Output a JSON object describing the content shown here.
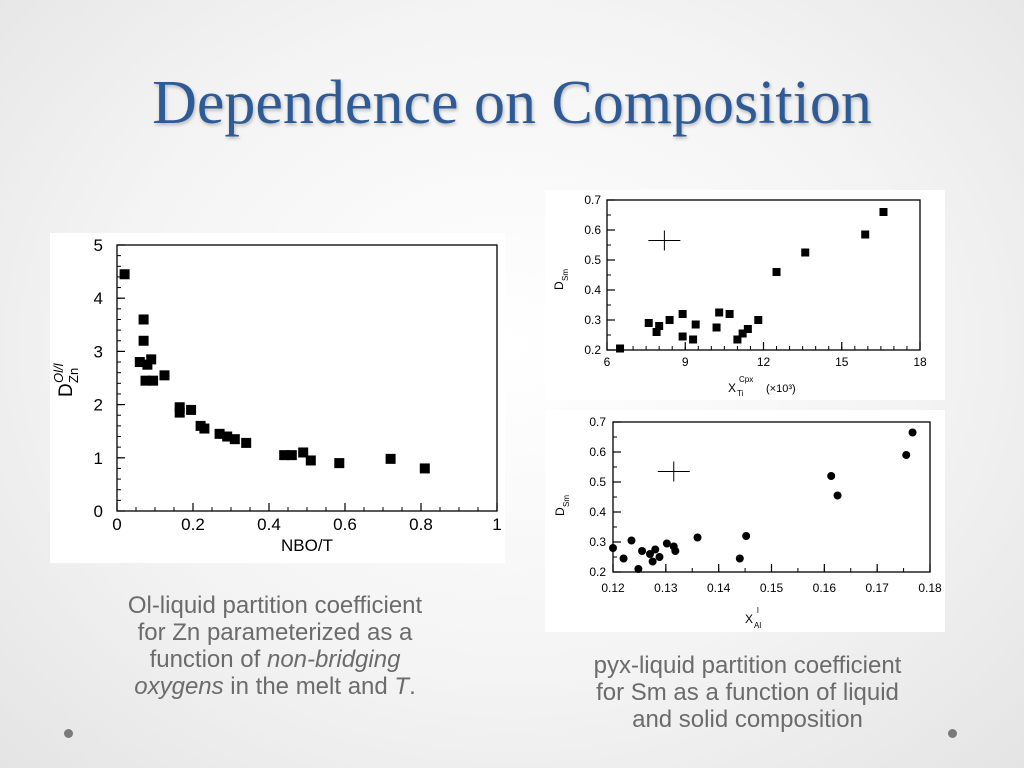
{
  "slide": {
    "title": "Dependence on Composition",
    "caption_left": {
      "line1": "Ol-liquid partition coefficient",
      "line2": "for Zn parameterized as a",
      "line3_a": "function of ",
      "line3_b": "non-bridging",
      "line4_a": "oxygens",
      "line4_b": " in the melt and ",
      "line4_c": "T",
      "line4_d": "."
    },
    "caption_right": {
      "line1": "pyx-liquid partition coefficient",
      "line2": "for Sm as a function of liquid",
      "line3": "and solid composition"
    }
  },
  "chart_data": [
    {
      "id": "zn",
      "type": "scatter",
      "marker": "square",
      "xlabel": "NBO/T",
      "ylabel": "D",
      "ylabel_sup": "Ol/l",
      "ylabel_sub": "Zn",
      "xlim": [
        0,
        1
      ],
      "ylim": [
        0,
        5
      ],
      "xticks": [
        "0",
        "0.2",
        "0.4",
        "0.6",
        "0.8",
        "1"
      ],
      "xtick_values": [
        0,
        0.2,
        0.4,
        0.6,
        0.8,
        1
      ],
      "yticks": [
        "0",
        "1",
        "2",
        "3",
        "4",
        "5"
      ],
      "ytick_values": [
        0,
        1,
        2,
        3,
        4,
        5
      ],
      "points": [
        [
          0.02,
          4.45
        ],
        [
          0.07,
          3.6
        ],
        [
          0.07,
          3.2
        ],
        [
          0.06,
          2.8
        ],
        [
          0.08,
          2.75
        ],
        [
          0.09,
          2.85
        ],
        [
          0.075,
          2.45
        ],
        [
          0.095,
          2.45
        ],
        [
          0.125,
          2.55
        ],
        [
          0.165,
          1.95
        ],
        [
          0.165,
          1.85
        ],
        [
          0.195,
          1.9
        ],
        [
          0.22,
          1.6
        ],
        [
          0.23,
          1.55
        ],
        [
          0.27,
          1.45
        ],
        [
          0.29,
          1.4
        ],
        [
          0.31,
          1.35
        ],
        [
          0.34,
          1.28
        ],
        [
          0.44,
          1.05
        ],
        [
          0.46,
          1.05
        ],
        [
          0.49,
          1.1
        ],
        [
          0.51,
          0.95
        ],
        [
          0.585,
          0.9
        ],
        [
          0.72,
          0.98
        ],
        [
          0.81,
          0.8
        ]
      ]
    },
    {
      "id": "smA",
      "type": "scatter",
      "marker": "square",
      "xlabel": "X",
      "xlabel_sup": "Cpx",
      "xlabel_sub": "Ti",
      "xlabel_suffix": "(×10³)",
      "ylabel": "D",
      "ylabel_sub": "Sm",
      "xlim": [
        6,
        18
      ],
      "ylim": [
        0.2,
        0.7
      ],
      "xticks": [
        "6",
        "9",
        "12",
        "15",
        "18"
      ],
      "xtick_values": [
        6,
        9,
        12,
        15,
        18
      ],
      "yticks": [
        "0.2",
        "0.3",
        "0.4",
        "0.5",
        "0.6",
        "0.7"
      ],
      "ytick_values": [
        0.2,
        0.3,
        0.4,
        0.5,
        0.6,
        0.7
      ],
      "error_cross": [
        8.2,
        0.565
      ],
      "points": [
        [
          6.5,
          0.205
        ],
        [
          7.6,
          0.29
        ],
        [
          7.9,
          0.26
        ],
        [
          8.0,
          0.28
        ],
        [
          8.4,
          0.3
        ],
        [
          8.9,
          0.32
        ],
        [
          8.9,
          0.245
        ],
        [
          9.3,
          0.235
        ],
        [
          9.4,
          0.285
        ],
        [
          10.2,
          0.275
        ],
        [
          10.3,
          0.325
        ],
        [
          10.7,
          0.32
        ],
        [
          11.0,
          0.235
        ],
        [
          11.2,
          0.255
        ],
        [
          11.4,
          0.27
        ],
        [
          11.8,
          0.3
        ],
        [
          12.5,
          0.46
        ],
        [
          13.6,
          0.525
        ],
        [
          15.9,
          0.585
        ],
        [
          16.6,
          0.66
        ]
      ]
    },
    {
      "id": "smB",
      "type": "scatter",
      "marker": "circle",
      "xlabel": "X",
      "xlabel_sup": "l",
      "xlabel_sub": "Al",
      "ylabel": "D",
      "ylabel_sub": "Sm",
      "xlim": [
        0.12,
        0.18
      ],
      "ylim": [
        0.2,
        0.7
      ],
      "xticks": [
        "0.12",
        "0.13",
        "0.14",
        "0.15",
        "0.16",
        "0.17",
        "0.18"
      ],
      "xtick_values": [
        0.12,
        0.13,
        0.14,
        0.15,
        0.16,
        0.17,
        0.18
      ],
      "yticks": [
        "0.2",
        "0.3",
        "0.4",
        "0.5",
        "0.6",
        "0.7"
      ],
      "ytick_values": [
        0.2,
        0.3,
        0.4,
        0.5,
        0.6,
        0.7
      ],
      "error_cross": [
        0.1315,
        0.535
      ],
      "points": [
        [
          0.12,
          0.28
        ],
        [
          0.122,
          0.245
        ],
        [
          0.1235,
          0.305
        ],
        [
          0.1248,
          0.21
        ],
        [
          0.1255,
          0.27
        ],
        [
          0.127,
          0.26
        ],
        [
          0.1275,
          0.235
        ],
        [
          0.128,
          0.275
        ],
        [
          0.1288,
          0.25
        ],
        [
          0.1302,
          0.295
        ],
        [
          0.1315,
          0.285
        ],
        [
          0.1318,
          0.27
        ],
        [
          0.136,
          0.315
        ],
        [
          0.144,
          0.245
        ],
        [
          0.1452,
          0.32
        ],
        [
          0.1613,
          0.52
        ],
        [
          0.1625,
          0.455
        ],
        [
          0.1755,
          0.59
        ],
        [
          0.1767,
          0.665
        ]
      ]
    }
  ]
}
